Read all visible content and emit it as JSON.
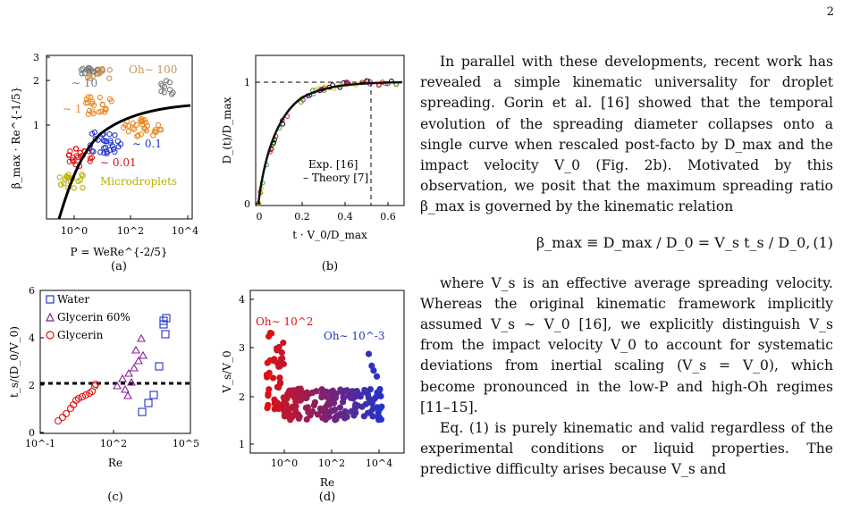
{
  "page_number": "2",
  "figure": {
    "panels": [
      {
        "label": "(a)",
        "x_label": "P = WeRe^{-2/5}",
        "y_label": "β_max · Re^{-1/5}",
        "x_ticks": [
          "10^0",
          "10^2",
          "10^4"
        ],
        "y_ticks": [
          "1",
          "2",
          "3"
        ],
        "annotations": [
          "Oh∼ 100",
          "∼ 10",
          "∼ 1",
          "∼ 0.1",
          "∼ 0.01",
          "Microdroplets"
        ]
      },
      {
        "label": "(b)",
        "x_label": "t · V_0/D_max",
        "y_label": "D_(t)/D_max",
        "x_ticks": [
          "0",
          "0.2",
          "0.4",
          "0.6"
        ],
        "y_ticks": [
          "0",
          "1"
        ],
        "legend": [
          "Exp. [16]",
          "– Theory [7]"
        ]
      },
      {
        "label": "(c)",
        "x_label": "Re",
        "y_label": "t_s/(D_0/V_0)",
        "x_ticks": [
          "10^-1",
          "10^2",
          "10^5"
        ],
        "y_ticks": [
          "0",
          "2",
          "4",
          "6"
        ],
        "legend": [
          "Water",
          "Glycerin 60%",
          "Glycerin"
        ]
      },
      {
        "label": "(d)",
        "x_label": "Re",
        "y_label": "V_s/V_0",
        "x_ticks": [
          "10^0",
          "10^2",
          "10^4"
        ],
        "y_ticks": [
          "1",
          "2",
          "3",
          "4"
        ],
        "annotations": [
          "Oh∼ 10^2",
          "Oh∼ 10^-3"
        ]
      }
    ]
  },
  "body": {
    "para1": "In parallel with these developments, recent work has revealed a simple kinematic universality for droplet spreading. Gorin et al. [16] showed that the temporal evolution of the spreading diameter collapses onto a single curve when rescaled post-facto by D_max and the impact velocity V_0 (Fig. 2b). Motivated by this observation, we posit that the maximum spreading ratio β_max is governed by the kinematic relation",
    "equation": "β_max ≡ D_max / D_0 = V_s t_s / D_0,",
    "equation_number": "(1)",
    "para2": "where V_s is an effective average spreading velocity. Whereas the original kinematic framework implicitly assumed V_s ∼ V_0 [16], we explicitly distinguish V_s from the impact velocity V_0 to account for systematic deviations from inertial scaling (V_s = V_0), which become pronounced in the low-P and high-Oh regimes [11–15].",
    "para3": "Eq. (1) is purely kinematic and valid regardless of the experimental conditions or liquid properties. The predictive difficulty arises because V_s and"
  },
  "colors": {
    "orange": "#e8871e",
    "tan": "#c8945a",
    "gray": "#777777",
    "blue": "#2233cc",
    "red": "#dd1111",
    "olive": "#b8b000",
    "purple": "#8a1a9a",
    "green": "#22aa33"
  }
}
